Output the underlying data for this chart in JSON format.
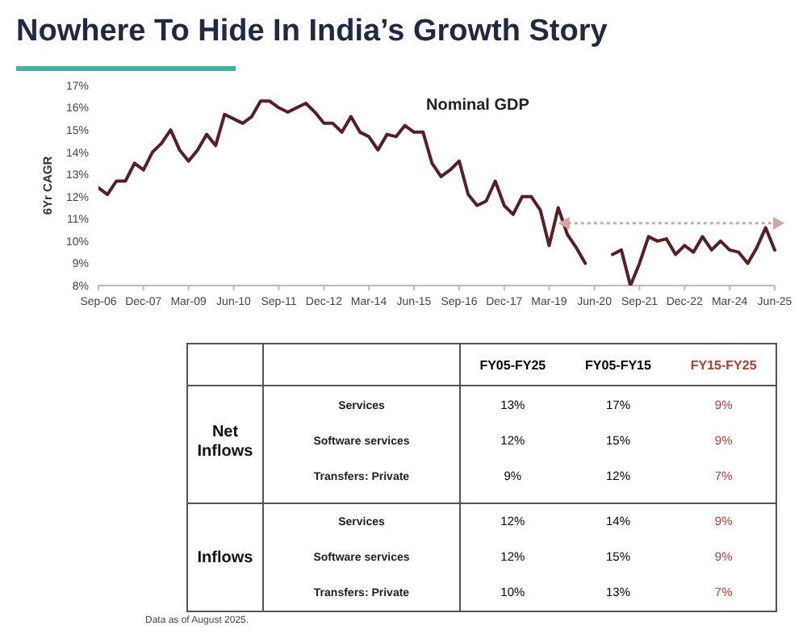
{
  "chart_data": [
    {
      "type": "line",
      "title": "Nowhere To Hide In India’s Growth Story",
      "subtitle": "Nominal GDP",
      "ylabel": "6Yr CAGR",
      "x": [
        "2006-09",
        "2006-12",
        "2007-03",
        "2007-06",
        "2007-09",
        "2007-12",
        "2008-03",
        "2008-06",
        "2008-09",
        "2008-12",
        "2009-03",
        "2009-06",
        "2009-09",
        "2009-12",
        "2010-03",
        "2010-06",
        "2010-09",
        "2010-12",
        "2011-03",
        "2011-06",
        "2011-09",
        "2011-12",
        "2012-03",
        "2012-06",
        "2012-09",
        "2012-12",
        "2013-03",
        "2013-06",
        "2013-09",
        "2013-12",
        "2014-03",
        "2014-06",
        "2014-09",
        "2014-12",
        "2015-03",
        "2015-06",
        "2015-09",
        "2015-12",
        "2016-03",
        "2016-06",
        "2016-09",
        "2016-12",
        "2017-03",
        "2017-06",
        "2017-09",
        "2017-12",
        "2018-03",
        "2018-06",
        "2018-09",
        "2018-12",
        "2019-03",
        "2019-06",
        "2019-09",
        "2019-12",
        "2020-03",
        "2020-12",
        "2021-03",
        "2021-06",
        "2021-09",
        "2021-12",
        "2022-03",
        "2022-06",
        "2022-09",
        "2022-12",
        "2023-03",
        "2023-06",
        "2023-09",
        "2023-12",
        "2024-03",
        "2024-06",
        "2024-09",
        "2024-12",
        "2025-03",
        "2025-06"
      ],
      "series": [
        {
          "color": "#5a1e24",
          "values": [
            12.4,
            12.1,
            12.7,
            12.7,
            13.5,
            13.2,
            14.0,
            14.4,
            15.0,
            14.1,
            13.6,
            14.1,
            14.8,
            14.3,
            15.7,
            15.5,
            15.3,
            15.6,
            16.3,
            16.3,
            16.0,
            15.8,
            16.0,
            16.2,
            15.8,
            15.3,
            15.3,
            14.9,
            15.6,
            14.9,
            14.7,
            14.1,
            14.8,
            14.7,
            15.2,
            14.9,
            14.9,
            13.5,
            12.9,
            13.2,
            13.6,
            12.1,
            11.6,
            11.8,
            12.7,
            11.6,
            11.2,
            12.0,
            12.0,
            11.4,
            9.8,
            11.5,
            10.3,
            9.7,
            9.0,
            9.4,
            9.6,
            8.0,
            9.0,
            10.2,
            10.0,
            10.1,
            9.4,
            9.8,
            9.5,
            10.2,
            9.6,
            10.0,
            9.6,
            9.5,
            9.0,
            9.7,
            10.6,
            9.6
          ]
        }
      ],
      "xlim": [
        "2006-09",
        "2025-06"
      ],
      "xticks": [
        {
          "value": "2006-09",
          "label": "Sep-06"
        },
        {
          "value": "2007-12",
          "label": "Dec-07"
        },
        {
          "value": "2009-03",
          "label": "Mar-09"
        },
        {
          "value": "2010-06",
          "label": "Jun-10"
        },
        {
          "value": "2011-09",
          "label": "Sep-11"
        },
        {
          "value": "2012-12",
          "label": "Dec-12"
        },
        {
          "value": "2014-03",
          "label": "Mar-14"
        },
        {
          "value": "2015-06",
          "label": "Jun-15"
        },
        {
          "value": "2016-09",
          "label": "Sep-16"
        },
        {
          "value": "2017-12",
          "label": "Dec-17"
        },
        {
          "value": "2019-03",
          "label": "Mar-19"
        },
        {
          "value": "2020-06",
          "label": "Jun-20"
        },
        {
          "value": "2021-09",
          "label": "Sep-21"
        },
        {
          "value": "2022-12",
          "label": "Dec-22"
        },
        {
          "value": "2024-03",
          "label": "Mar-24"
        },
        {
          "value": "2025-06",
          "label": "Jun-25"
        }
      ],
      "ylim": [
        8,
        17
      ],
      "yticks": [
        {
          "value": 8,
          "label": "8%"
        },
        {
          "value": 9,
          "label": "9%"
        },
        {
          "value": 10,
          "label": "10%"
        },
        {
          "value": 11,
          "label": "11%"
        },
        {
          "value": 12,
          "label": "12%"
        },
        {
          "value": 13,
          "label": "13%"
        },
        {
          "value": 14,
          "label": "14%"
        },
        {
          "value": 15,
          "label": "15%"
        },
        {
          "value": 16,
          "label": "16%"
        },
        {
          "value": 17,
          "label": "17%"
        }
      ],
      "grid": false,
      "marker": "none",
      "line_style": "solid"
    },
    {
      "type": "other",
      "categories": [
        "FY05-FY25",
        "FY05-FY15",
        "FY15-FY25"
      ],
      "colors": [
        "#000000",
        "#000000",
        "#c0392b"
      ],
      "y_categories": [
        "Services",
        "Software services",
        "Transfers: Private",
        "Services",
        "Software services",
        "Transfers: Private"
      ],
      "y2_categories": [
        "Net Inflows",
        null,
        null,
        "Inflows",
        null,
        null
      ],
      "cell_labels": [
        [
          "13%",
          "17%",
          "9%"
        ],
        [
          "12%",
          "15%",
          "9%"
        ],
        [
          "9%",
          "12%",
          "7%"
        ],
        [
          "12%",
          "14%",
          "9%"
        ],
        [
          "12%",
          "15%",
          "9%"
        ],
        [
          "10%",
          "13%",
          "7%"
        ]
      ],
      "annotations": [
        "Data as of August 2025."
      ]
    }
  ]
}
